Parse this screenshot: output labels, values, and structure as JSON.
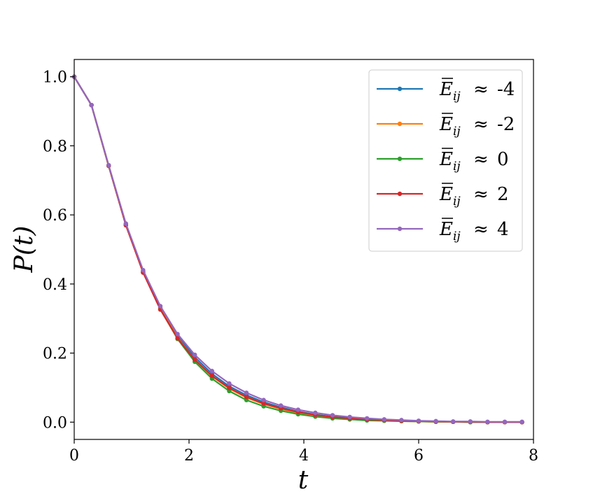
{
  "chart_data": {
    "type": "line",
    "xlabel": "t",
    "ylabel": "P(t)",
    "xlim": [
      0,
      8
    ],
    "ylim": [
      -0.05,
      1.05
    ],
    "xticks": [
      0,
      2,
      4,
      6,
      8
    ],
    "xtick_labels": [
      "0",
      "2",
      "4",
      "6",
      "8"
    ],
    "yticks": [
      0.0,
      0.2,
      0.4,
      0.6,
      0.8,
      1.0
    ],
    "ytick_labels": [
      "0.0",
      "0.2",
      "0.4",
      "0.6",
      "0.8",
      "1.0"
    ],
    "grid": false,
    "legend_position": "top-right",
    "x": [
      0,
      0.3,
      0.6,
      0.9,
      1.2,
      1.5,
      1.8,
      2.1,
      2.4,
      2.7,
      3.0,
      3.3,
      3.6,
      3.9,
      4.2,
      4.5,
      4.8,
      5.1,
      5.4,
      5.7,
      6.0,
      6.3,
      6.6,
      6.9,
      7.2,
      7.5,
      7.8
    ],
    "series": [
      {
        "name": "Ē_ij ≈ -4",
        "label_value": "-4",
        "color": "#1f77b4",
        "values": [
          1.0,
          0.918,
          0.743,
          0.572,
          0.437,
          0.332,
          0.25,
          0.188,
          0.14,
          0.104,
          0.078,
          0.058,
          0.043,
          0.031,
          0.022,
          0.016,
          0.011,
          0.008,
          0.006,
          0.004,
          0.003,
          0.002,
          0.001,
          0.001,
          0.0,
          0.0,
          0.0
        ]
      },
      {
        "name": "Ē_ij ≈ -2",
        "label_value": "-2",
        "color": "#ff7f0e",
        "values": [
          1.0,
          0.918,
          0.742,
          0.571,
          0.435,
          0.329,
          0.245,
          0.181,
          0.133,
          0.097,
          0.071,
          0.052,
          0.038,
          0.027,
          0.019,
          0.013,
          0.009,
          0.007,
          0.005,
          0.003,
          0.002,
          0.001,
          0.001,
          0.0,
          0.0,
          0.0,
          0.0
        ]
      },
      {
        "name": "Ē_ij ≈ 0",
        "label_value": "0",
        "color": "#2ca02c",
        "values": [
          1.0,
          0.918,
          0.742,
          0.571,
          0.434,
          0.327,
          0.241,
          0.175,
          0.126,
          0.09,
          0.064,
          0.046,
          0.033,
          0.023,
          0.016,
          0.011,
          0.008,
          0.005,
          0.004,
          0.003,
          0.002,
          0.001,
          0.001,
          0.0,
          0.0,
          0.0,
          0.0
        ]
      },
      {
        "name": "Ē_ij ≈ 2",
        "label_value": "2",
        "color": "#d62728",
        "values": [
          1.0,
          0.918,
          0.742,
          0.57,
          0.433,
          0.326,
          0.243,
          0.181,
          0.134,
          0.099,
          0.073,
          0.054,
          0.04,
          0.029,
          0.021,
          0.015,
          0.011,
          0.008,
          0.006,
          0.004,
          0.003,
          0.002,
          0.001,
          0.001,
          0.0,
          0.0,
          0.0
        ]
      },
      {
        "name": "Ē_ij ≈ 4",
        "label_value": "4",
        "color": "#9467bd",
        "values": [
          1.0,
          0.918,
          0.744,
          0.575,
          0.44,
          0.336,
          0.255,
          0.195,
          0.148,
          0.112,
          0.085,
          0.064,
          0.048,
          0.036,
          0.027,
          0.02,
          0.015,
          0.011,
          0.008,
          0.006,
          0.004,
          0.003,
          0.002,
          0.002,
          0.001,
          0.001,
          0.001
        ]
      }
    ]
  }
}
